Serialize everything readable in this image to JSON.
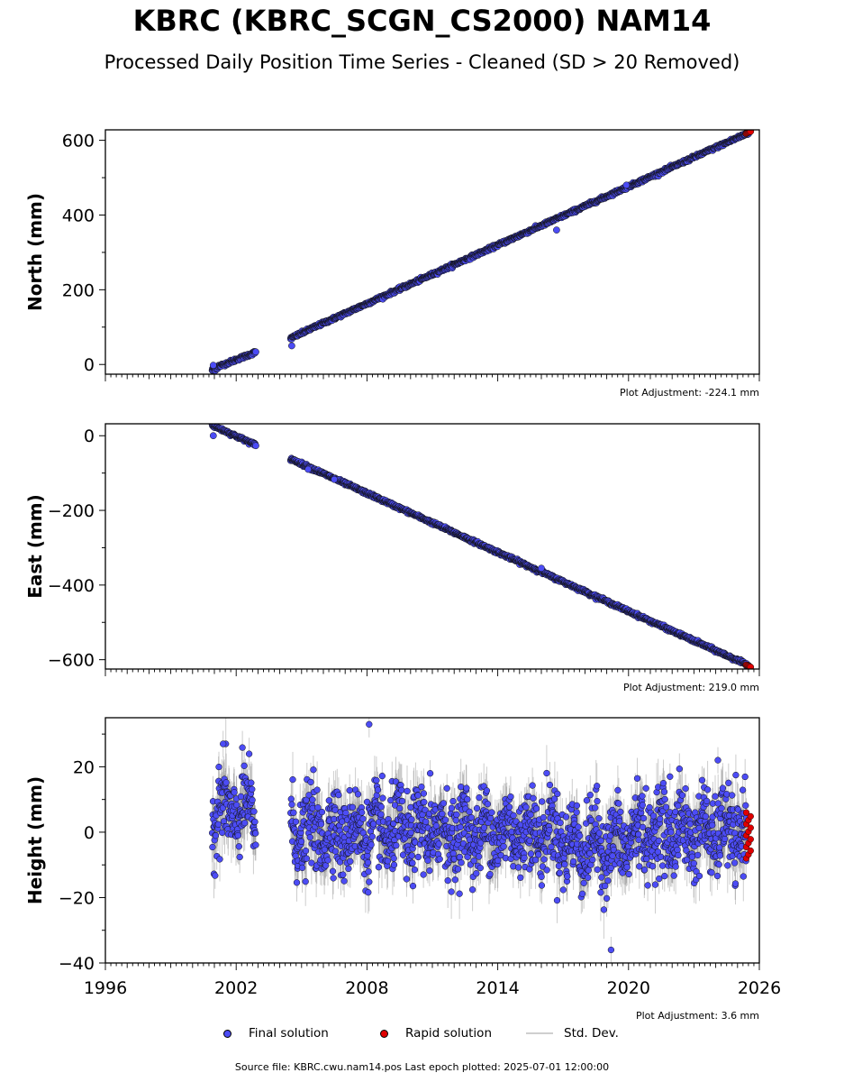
{
  "title": "KBRC (KBRC_SCGN_CS2000) NAM14",
  "subtitle": "Processed Daily Position Time Series - Cleaned (SD > 20 Removed)",
  "colors": {
    "final": "#4c4cf5",
    "rapid": "#e00000",
    "std": "#b0b0b0",
    "final_edge": "#1a1a40"
  },
  "legend": {
    "final": "Final solution",
    "rapid": "Rapid solution",
    "std": "Std. Dev."
  },
  "footer": "Source file: KBRC.cwu.nam14.pos  Last epoch plotted: 2025-07-01 12:00:00",
  "chart_data": [
    {
      "type": "scatter",
      "name": "north",
      "ylabel": "North (mm)",
      "xlim": [
        1996,
        2026
      ],
      "ylim": [
        -26,
        628
      ],
      "yticks": [
        0,
        200,
        400,
        600
      ],
      "adjustment": "Plot Adjustment: -224.1 mm",
      "trend": [
        {
          "start": 2000.9,
          "end": 2001.2,
          "y0": -15,
          "y1": -5,
          "noise": 3
        },
        {
          "start": 2001.2,
          "end": 2002.9,
          "y0": -5,
          "y1": 33,
          "noise": 2
        },
        {
          "start": 2004.5,
          "end": 2005.4,
          "y0": 70,
          "y1": 95,
          "noise": 2
        },
        {
          "start": 2005.4,
          "end": 2025.5,
          "y0": 95,
          "y1": 620,
          "noise": 2
        }
      ],
      "outliers": [
        [
          2000.95,
          -2
        ],
        [
          2004.55,
          50
        ],
        [
          2016.7,
          360
        ],
        [
          2019.9,
          480
        ]
      ],
      "rapid": {
        "start": 2025.4,
        "end": 2025.6,
        "y0": 618,
        "y1": 624
      }
    },
    {
      "type": "scatter",
      "name": "east",
      "ylabel": "East (mm)",
      "xlim": [
        1996,
        2026
      ],
      "ylim": [
        -625,
        32
      ],
      "yticks": [
        0,
        -200,
        -400,
        -600
      ],
      "adjustment": "Plot Adjustment: 219.0 mm",
      "trend": [
        {
          "start": 2000.9,
          "end": 2002.9,
          "y0": 28,
          "y1": -25,
          "noise": 2
        },
        {
          "start": 2004.5,
          "end": 2025.5,
          "y0": -62,
          "y1": -615,
          "noise": 2
        }
      ],
      "outliers": [
        [
          2000.95,
          0
        ],
        [
          2005.3,
          -90
        ],
        [
          2006.5,
          -117
        ],
        [
          2016.0,
          -355
        ]
      ],
      "rapid": {
        "start": 2025.4,
        "end": 2025.6,
        "y0": -614,
        "y1": -620
      }
    },
    {
      "type": "scatter",
      "name": "height",
      "ylabel": "Height (mm)",
      "xlim": [
        1996,
        2026
      ],
      "ylim": [
        -40,
        35
      ],
      "yticks": [
        20,
        0,
        -20,
        -40
      ],
      "xticks": [
        1996,
        2002,
        2008,
        2014,
        2020,
        2026
      ],
      "adjustment": "Plot Adjustment: 3.6 mm",
      "segments": [
        [
          2000.9,
          2002.9
        ],
        [
          2004.5,
          2025.4
        ]
      ],
      "noise_sd": 6,
      "outliers": [
        [
          2008.1,
          33
        ],
        [
          2001.4,
          27
        ],
        [
          2019.2,
          -36
        ],
        [
          2021.9,
          17
        ],
        [
          2010.9,
          18
        ],
        [
          2024.1,
          22
        ]
      ],
      "rapid": {
        "start": 2025.4,
        "end": 2025.6,
        "ymin": -8,
        "ymax": 6
      }
    }
  ]
}
